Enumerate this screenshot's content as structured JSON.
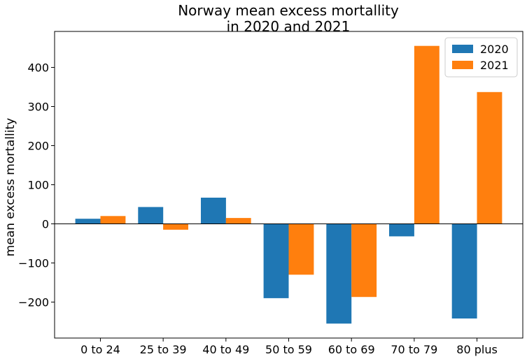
{
  "chart_data": {
    "type": "bar",
    "title_lines": [
      "Norway mean excess mortallity",
      "in 2020 and 2021"
    ],
    "xlabel": "",
    "ylabel": "mean excess mortallity",
    "categories": [
      "0 to 24",
      "25 to 39",
      "40 to 49",
      "50 to 59",
      "60 to 69",
      "70 to 79",
      "80 plus"
    ],
    "series": [
      {
        "name": "2020",
        "color": "#1f77b4",
        "values": [
          13,
          43,
          67,
          -190,
          -255,
          -32,
          -242
        ]
      },
      {
        "name": "2021",
        "color": "#ff7f0e",
        "values": [
          20,
          -15,
          15,
          -130,
          -187,
          455,
          337
        ]
      }
    ],
    "ylim": [
      -292,
      492
    ],
    "yticks": [
      -200,
      -100,
      0,
      100,
      200,
      300,
      400
    ],
    "ytick_labels": [
      "−200",
      "−100",
      "0",
      "100",
      "200",
      "300",
      "400"
    ],
    "grid": false,
    "zero_line": true,
    "legend_position": "top-right"
  }
}
